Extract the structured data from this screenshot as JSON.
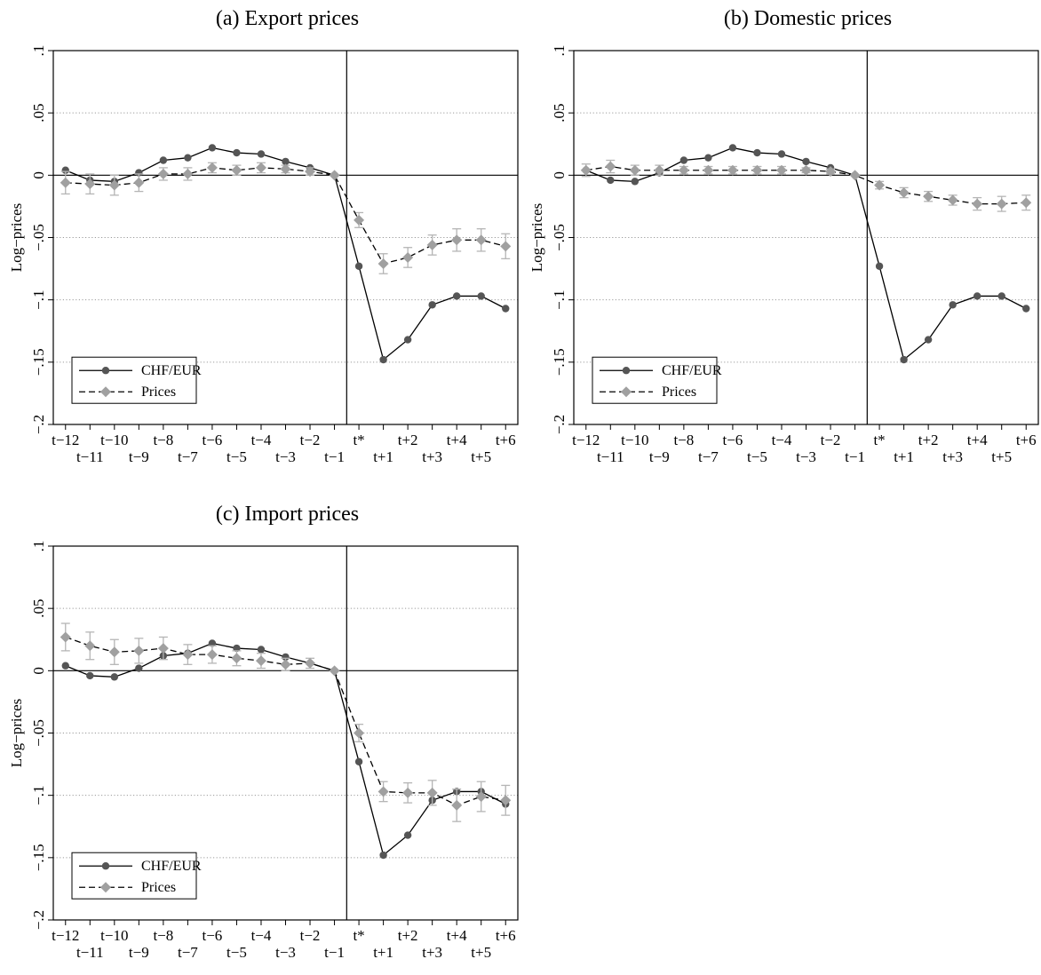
{
  "chart_data": [
    {
      "type": "line",
      "title": "(a) Export prices",
      "ylabel": "Log−prices",
      "xlabel": "",
      "ylim": [
        -0.2,
        0.1
      ],
      "yticks": [
        ".1",
        ".05",
        "0",
        "−.05",
        "−.1",
        "−.15",
        "−.2"
      ],
      "ytick_values": [
        0.1,
        0.05,
        0,
        -0.05,
        -0.1,
        -0.15,
        -0.2
      ],
      "categories": [
        "t−12",
        "t−11",
        "t−10",
        "t−9",
        "t−8",
        "t−7",
        "t−6",
        "t−5",
        "t−4",
        "t−3",
        "t−2",
        "t−1",
        "t*",
        "t+1",
        "t+2",
        "t+3",
        "t+4",
        "t+5",
        "t+6"
      ],
      "event_line_after": "t−1",
      "grid": "dotted horizontal",
      "legend": "bottom-left",
      "series": [
        {
          "name": "CHF/EUR",
          "color": "#555555",
          "marker": "circle",
          "dash": "solid",
          "values": [
            0.004,
            -0.004,
            -0.005,
            0.002,
            0.012,
            0.014,
            0.022,
            0.018,
            0.017,
            0.011,
            0.006,
            0.0,
            -0.073,
            -0.148,
            -0.132,
            -0.104,
            -0.097,
            -0.097,
            -0.107
          ]
        },
        {
          "name": "Prices",
          "color": "#a0a0a0",
          "marker": "diamond",
          "dash": "dashed",
          "values": [
            -0.006,
            -0.007,
            -0.008,
            -0.006,
            0.001,
            0.001,
            0.006,
            0.004,
            0.006,
            0.005,
            0.003,
            0.0,
            -0.036,
            -0.071,
            -0.066,
            -0.056,
            -0.052,
            -0.052,
            -0.057
          ],
          "ci": [
            0.009,
            0.008,
            0.008,
            0.007,
            0.005,
            0.005,
            0.004,
            0.004,
            0.004,
            0.003,
            0.003,
            0.0,
            0.006,
            0.008,
            0.008,
            0.008,
            0.009,
            0.009,
            0.01
          ]
        }
      ]
    },
    {
      "type": "line",
      "title": "(b) Domestic prices",
      "ylabel": "Log−prices",
      "xlabel": "",
      "ylim": [
        -0.2,
        0.1
      ],
      "yticks": [
        ".1",
        ".05",
        "0",
        "−.05",
        "−.1",
        "−.15",
        "−.2"
      ],
      "ytick_values": [
        0.1,
        0.05,
        0,
        -0.05,
        -0.1,
        -0.15,
        -0.2
      ],
      "categories": [
        "t−12",
        "t−11",
        "t−10",
        "t−9",
        "t−8",
        "t−7",
        "t−6",
        "t−5",
        "t−4",
        "t−3",
        "t−2",
        "t−1",
        "t*",
        "t+1",
        "t+2",
        "t+3",
        "t+4",
        "t+5",
        "t+6"
      ],
      "event_line_after": "t−1",
      "grid": "dotted horizontal",
      "legend": "bottom-left",
      "series": [
        {
          "name": "CHF/EUR",
          "color": "#555555",
          "marker": "circle",
          "dash": "solid",
          "values": [
            0.004,
            -0.004,
            -0.005,
            0.002,
            0.012,
            0.014,
            0.022,
            0.018,
            0.017,
            0.011,
            0.006,
            0.0,
            -0.073,
            -0.148,
            -0.132,
            -0.104,
            -0.097,
            -0.097,
            -0.107
          ]
        },
        {
          "name": "Prices",
          "color": "#a0a0a0",
          "marker": "diamond",
          "dash": "dashed",
          "values": [
            0.004,
            0.007,
            0.004,
            0.004,
            0.004,
            0.004,
            0.004,
            0.004,
            0.004,
            0.004,
            0.003,
            0.0,
            -0.008,
            -0.014,
            -0.017,
            -0.02,
            -0.023,
            -0.023,
            -0.022
          ],
          "ci": [
            0.005,
            0.005,
            0.004,
            0.004,
            0.003,
            0.003,
            0.003,
            0.003,
            0.003,
            0.002,
            0.002,
            0.0,
            0.003,
            0.004,
            0.004,
            0.004,
            0.005,
            0.006,
            0.006
          ]
        }
      ]
    },
    {
      "type": "line",
      "title": "(c) Import prices",
      "ylabel": "Log−prices",
      "xlabel": "",
      "ylim": [
        -0.2,
        0.1
      ],
      "yticks": [
        ".1",
        ".05",
        "0",
        "−.05",
        "−.1",
        "−.15",
        "−.2"
      ],
      "ytick_values": [
        0.1,
        0.05,
        0,
        -0.05,
        -0.1,
        -0.15,
        -0.2
      ],
      "categories": [
        "t−12",
        "t−11",
        "t−10",
        "t−9",
        "t−8",
        "t−7",
        "t−6",
        "t−5",
        "t−4",
        "t−3",
        "t−2",
        "t−1",
        "t*",
        "t+1",
        "t+2",
        "t+3",
        "t+4",
        "t+5",
        "t+6"
      ],
      "event_line_after": "t−1",
      "grid": "dotted horizontal",
      "legend": "bottom-left",
      "series": [
        {
          "name": "CHF/EUR",
          "color": "#555555",
          "marker": "circle",
          "dash": "solid",
          "values": [
            0.004,
            -0.004,
            -0.005,
            0.002,
            0.012,
            0.014,
            0.022,
            0.018,
            0.017,
            0.011,
            0.006,
            0.0,
            -0.073,
            -0.148,
            -0.132,
            -0.104,
            -0.097,
            -0.097,
            -0.107
          ]
        },
        {
          "name": "Prices",
          "color": "#a0a0a0",
          "marker": "diamond",
          "dash": "dashed",
          "values": [
            0.027,
            0.02,
            0.015,
            0.016,
            0.018,
            0.013,
            0.013,
            0.01,
            0.008,
            0.005,
            0.006,
            0.0,
            -0.05,
            -0.097,
            -0.098,
            -0.098,
            -0.108,
            -0.101,
            -0.104
          ],
          "ci": [
            0.011,
            0.011,
            0.01,
            0.01,
            0.009,
            0.008,
            0.007,
            0.006,
            0.006,
            0.005,
            0.004,
            0.0,
            0.007,
            0.008,
            0.008,
            0.01,
            0.013,
            0.012,
            0.012
          ]
        }
      ]
    }
  ]
}
